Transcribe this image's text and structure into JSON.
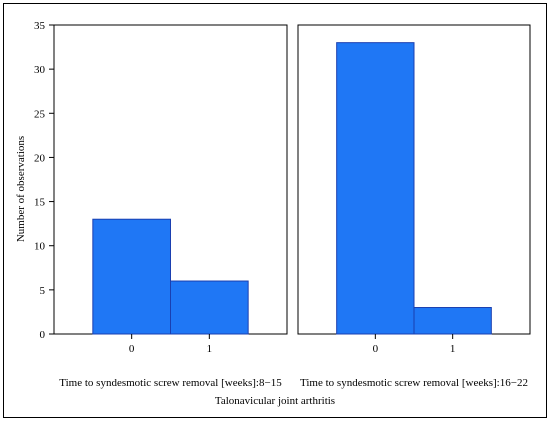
{
  "chart_data": {
    "type": "bar",
    "ylabel": "Number of observations",
    "xlabel": "Talonavicular joint arthritis",
    "ylim": [
      0,
      35
    ],
    "yticks": [
      "0",
      "5",
      "10",
      "15",
      "20",
      "25",
      "30",
      "35"
    ],
    "categories": [
      "0",
      "1"
    ],
    "bar_color": "#1f77f5",
    "bar_edge": "#1a3fb0",
    "grid": false,
    "panels": [
      {
        "label": "Time to syndesmotic screw removal [weeks]:8−15",
        "values": [
          13,
          6
        ]
      },
      {
        "label": "Time to syndesmotic screw removal [weeks]:16−22",
        "values": [
          33,
          3
        ]
      }
    ]
  }
}
